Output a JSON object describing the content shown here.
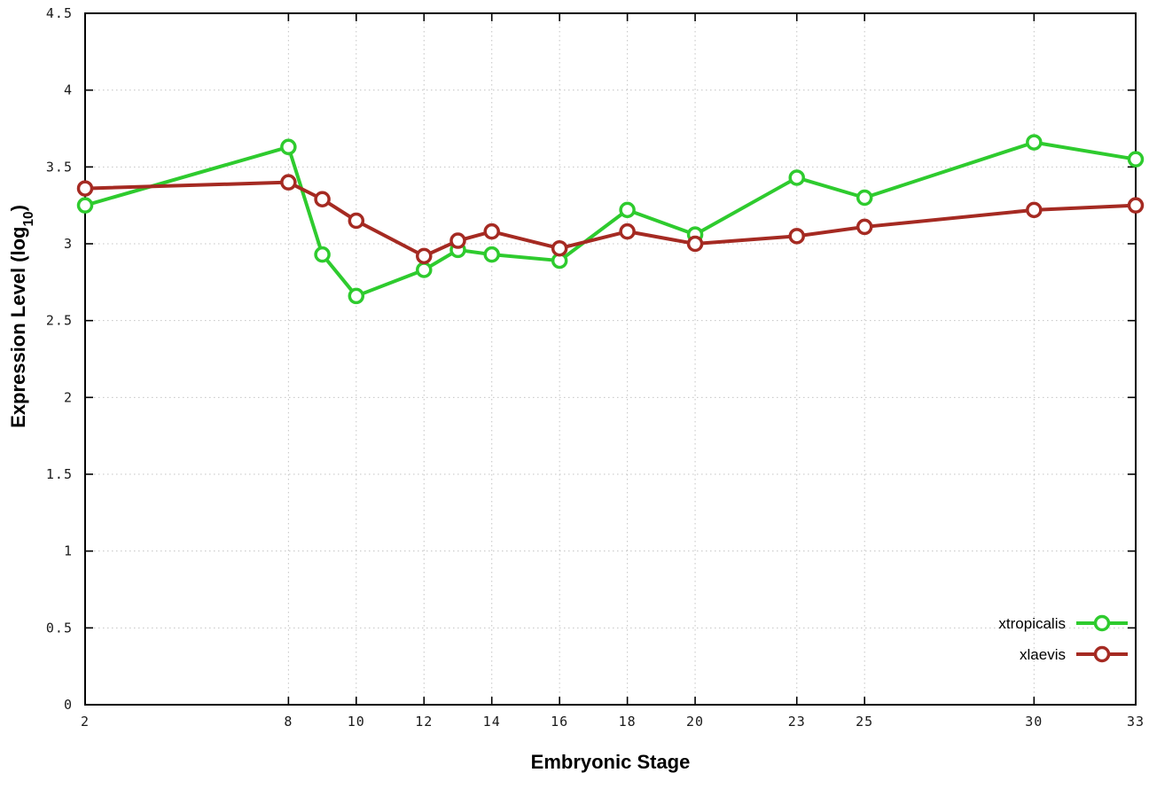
{
  "chart_data": {
    "type": "line",
    "title": "",
    "xlabel": "Embryonic Stage",
    "ylabel": "Expression Level (log10)",
    "ylabel_parts": {
      "main": "Expression Level (log",
      "sub": "10",
      "end": ")"
    },
    "xlim": [
      2,
      33
    ],
    "ylim": [
      0,
      4.5
    ],
    "x_ticks": [
      2,
      8,
      10,
      12,
      14,
      16,
      18,
      20,
      23,
      25,
      30,
      33
    ],
    "y_ticks": [
      0,
      0.5,
      1,
      1.5,
      2,
      2.5,
      3,
      3.5,
      4,
      4.5
    ],
    "grid": true,
    "legend_position": "inside-bottom-right",
    "marker": "open-circle",
    "colors": {
      "xtropicalis": "#2ecb2e",
      "xlaevis": "#a52a22",
      "grid": "#c4c4c4",
      "axis": "#000000"
    },
    "series": [
      {
        "name": "xtropicalis",
        "color": "#2ecb2e",
        "x": [
          2,
          8,
          9,
          10,
          12,
          13,
          14,
          16,
          18,
          20,
          23,
          25,
          30,
          33
        ],
        "values": [
          3.25,
          3.63,
          2.93,
          2.66,
          2.83,
          2.96,
          2.93,
          2.89,
          3.22,
          3.06,
          3.43,
          3.3,
          3.66,
          3.55
        ]
      },
      {
        "name": "xlaevis",
        "color": "#a52a22",
        "x": [
          2,
          8,
          9,
          10,
          12,
          13,
          14,
          16,
          18,
          20,
          23,
          25,
          30,
          33
        ],
        "values": [
          3.36,
          3.4,
          3.29,
          3.15,
          2.92,
          3.02,
          3.08,
          2.97,
          3.08,
          3.0,
          3.05,
          3.11,
          3.22,
          3.25
        ]
      }
    ]
  }
}
